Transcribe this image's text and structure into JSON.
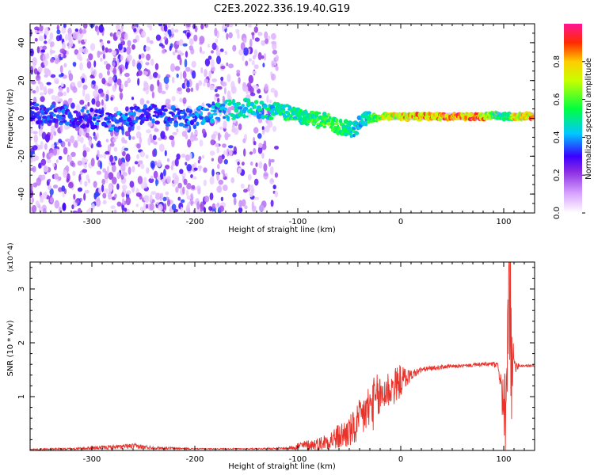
{
  "title": "C2E3.2022.336.19.40.G19",
  "chart_data": [
    {
      "type": "heatmap",
      "xlabel": "Height of straight line (km)",
      "ylabel": "Frequency (Hz)",
      "xlim": [
        -360,
        130
      ],
      "ylim": [
        -50,
        50
      ],
      "xticks": [
        -300,
        -200,
        -100,
        0,
        100
      ],
      "yticks": [
        -40,
        -20,
        0,
        20,
        40
      ],
      "grid": false,
      "colorbar": {
        "label": "Normalized spectral amplitude",
        "range": [
          0,
          1
        ],
        "ticks": [
          "0.0",
          "0.2",
          "0.4",
          "0.6",
          "0.8"
        ],
        "stops": [
          {
            "v": 0.0,
            "color": "#ffffff"
          },
          {
            "v": 0.1,
            "color": "#d9a6ff"
          },
          {
            "v": 0.22,
            "color": "#8a2be2"
          },
          {
            "v": 0.3,
            "color": "#3a00ff"
          },
          {
            "v": 0.42,
            "color": "#00c8ff"
          },
          {
            "v": 0.55,
            "color": "#00ff40"
          },
          {
            "v": 0.7,
            "color": "#c8ff00"
          },
          {
            "v": 0.8,
            "color": "#ffcc00"
          },
          {
            "v": 0.9,
            "color": "#ff2a00"
          },
          {
            "v": 1.0,
            "color": "#ff1493"
          }
        ]
      },
      "ridge": {
        "x": [
          -360,
          -330,
          -300,
          -280,
          -250,
          -220,
          -200,
          -180,
          -150,
          -120,
          -110,
          -90,
          -80,
          -70,
          -60,
          -50,
          -45,
          -40,
          -35,
          -30,
          -20,
          -10,
          0,
          20,
          50,
          80,
          90,
          100,
          105,
          110,
          130
        ],
        "y": [
          3,
          2,
          0,
          -2,
          2,
          1,
          0,
          4,
          5,
          5,
          3,
          0,
          -1,
          -2,
          -4,
          -6,
          -5,
          -3,
          -1,
          0,
          1,
          1,
          1,
          1,
          1,
          1,
          2,
          1,
          1,
          1,
          1
        ],
        "amplitude": [
          0.35,
          0.35,
          0.35,
          0.4,
          0.35,
          0.35,
          0.4,
          0.45,
          0.5,
          0.5,
          0.55,
          0.55,
          0.6,
          0.6,
          0.6,
          0.55,
          0.5,
          0.5,
          0.5,
          0.55,
          0.7,
          0.75,
          0.8,
          0.85,
          0.9,
          0.85,
          0.6,
          0.55,
          0.5,
          0.8,
          0.85
        ]
      }
    },
    {
      "type": "line",
      "xlabel": "Height of straight line (km)",
      "ylabel": "SNR (10 * v/v)",
      "y_multiplier": "(x10^4)",
      "xlim": [
        -360,
        130
      ],
      "ylim": [
        0,
        3.5
      ],
      "xticks": [
        -300,
        -200,
        -100,
        0,
        100
      ],
      "yticks": [
        1,
        2,
        3
      ],
      "grid": false,
      "color": "#e8322a",
      "envelope": {
        "x": [
          -360,
          -320,
          -280,
          -260,
          -240,
          -200,
          -150,
          -110,
          -100,
          -80,
          -60,
          -45,
          -35,
          -25,
          -15,
          -5,
          0,
          10,
          20,
          40,
          60,
          80,
          90,
          95,
          100,
          103,
          106,
          108,
          110,
          115,
          130
        ],
        "base": [
          0.02,
          0.03,
          0.06,
          0.08,
          0.05,
          0.03,
          0.03,
          0.04,
          0.08,
          0.12,
          0.25,
          0.4,
          0.7,
          0.9,
          1.1,
          1.2,
          1.3,
          1.4,
          1.5,
          1.55,
          1.57,
          1.6,
          1.6,
          1.55,
          0.8,
          0.6,
          2.2,
          1.4,
          1.6,
          1.58,
          1.57
        ],
        "noise": [
          0.01,
          0.02,
          0.04,
          0.05,
          0.03,
          0.01,
          0.01,
          0.02,
          0.08,
          0.12,
          0.25,
          0.35,
          0.45,
          0.5,
          0.4,
          0.35,
          0.3,
          0.1,
          0.05,
          0.04,
          0.03,
          0.04,
          0.05,
          0.08,
          0.6,
          0.9,
          1.2,
          1.0,
          0.2,
          0.03,
          0.02
        ]
      }
    }
  ]
}
